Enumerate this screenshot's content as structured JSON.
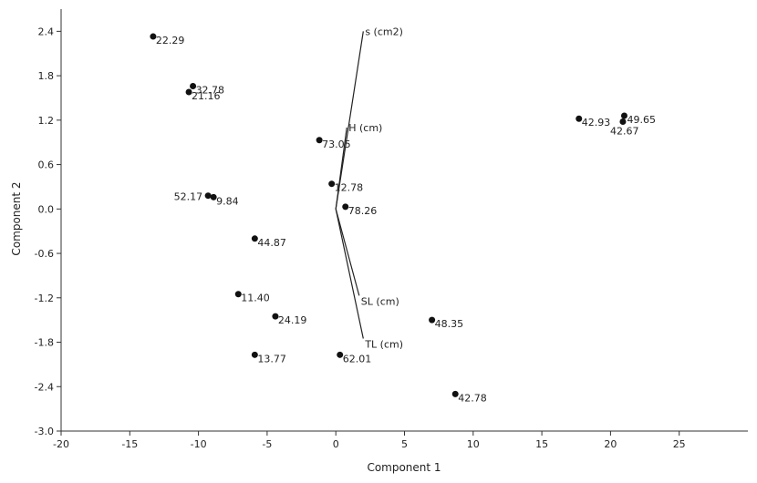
{
  "chart_data": {
    "type": "scatter",
    "xlabel": "Component 1",
    "ylabel": "Component 2",
    "xlim": [
      -20,
      30
    ],
    "ylim": [
      -3.0,
      2.7
    ],
    "xticks": [
      -20,
      -15,
      -10,
      -5,
      0,
      5,
      10,
      15,
      20,
      25
    ],
    "xtick_labels": [
      "-20",
      "-15",
      "-10",
      "-5",
      "0",
      "5",
      "10",
      "15",
      "20",
      "25"
    ],
    "yticks": [
      2.4,
      1.8,
      1.2,
      0.6,
      0.0,
      -0.6,
      -1.2,
      -1.8,
      -2.4,
      -3.0
    ],
    "ytick_labels": [
      "2.4",
      "1.8",
      "1.2",
      "0.6",
      "0.0",
      "-0.6",
      "-1.2",
      "-1.8",
      "-2.4",
      "-3.0"
    ],
    "grid": false,
    "points": [
      {
        "label": "22.29",
        "x": -13.3,
        "y": 2.33,
        "label_side": "right"
      },
      {
        "label": "32.78",
        "x": -10.4,
        "y": 1.66,
        "label_side": "right"
      },
      {
        "label": "21.16",
        "x": -10.7,
        "y": 1.58,
        "label_side": "right"
      },
      {
        "label": "73.05",
        "x": -1.2,
        "y": 0.93,
        "label_side": "right"
      },
      {
        "label": "12.78",
        "x": -0.3,
        "y": 0.34,
        "label_side": "right"
      },
      {
        "label": "78.26",
        "x": 0.7,
        "y": 0.03,
        "label_side": "right"
      },
      {
        "label": "52.17",
        "x": -9.3,
        "y": 0.18,
        "label_side": "left"
      },
      {
        "label": "9.84",
        "x": -8.9,
        "y": 0.16,
        "label_side": "right"
      },
      {
        "label": "44.87",
        "x": -5.9,
        "y": -0.4,
        "label_side": "right"
      },
      {
        "label": "11.40",
        "x": -7.1,
        "y": -1.15,
        "label_side": "right"
      },
      {
        "label": "24.19",
        "x": -4.4,
        "y": -1.45,
        "label_side": "right"
      },
      {
        "label": "13.77",
        "x": -5.9,
        "y": -1.97,
        "label_side": "right"
      },
      {
        "label": "62.01",
        "x": 0.3,
        "y": -1.97,
        "label_side": "right"
      },
      {
        "label": "48.35",
        "x": 7.0,
        "y": -1.5,
        "label_side": "right"
      },
      {
        "label": "42.78",
        "x": 8.7,
        "y": -2.5,
        "label_side": "right"
      },
      {
        "label": "42.93",
        "x": 17.7,
        "y": 1.22,
        "label_side": "right"
      },
      {
        "label": "49.65",
        "x": 21.0,
        "y": 1.26,
        "label_side": "right"
      },
      {
        "label": "42.67",
        "x": 20.9,
        "y": 1.18,
        "label_side": "below"
      }
    ],
    "loadings": [
      {
        "label": "s (cm2)",
        "x": 2.0,
        "y": 2.4
      },
      {
        "label": "H (cm)",
        "x": 0.8,
        "y": 1.1
      },
      {
        "label": "SL (cm)",
        "x": 1.7,
        "y": -1.17
      },
      {
        "label": "TL (cm)",
        "x": 2.0,
        "y": -1.75
      }
    ]
  }
}
